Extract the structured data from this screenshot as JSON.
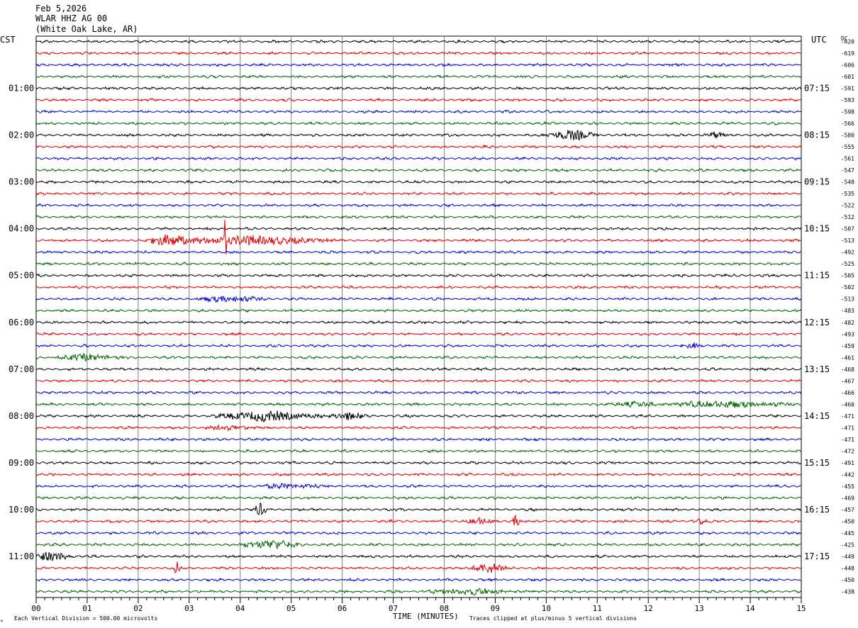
{
  "header": {
    "date": "Feb 5,2026",
    "station": "WLAR HHZ AG 00",
    "location": "(White Oak Lake, AR)"
  },
  "left_axis_label": "CST",
  "right_axis_label": "UTC",
  "dc_label": "DC",
  "footer": {
    "scale_note": "Each Vertical Division =  500.00 microvolts",
    "clip_note": "Traces clipped at plus/minus 5 vertical divisions",
    "corner_mark": "ᴹ"
  },
  "colors": {
    "trace_cycle": [
      "#000000",
      "#e00000",
      "#0000d0",
      "#006400"
    ],
    "grid": "#7f7f7f"
  },
  "chart_data": {
    "type": "line",
    "xlabel": "TIME (MINUTES)",
    "xlim": [
      0,
      15
    ],
    "x_ticks": [
      "00",
      "01",
      "02",
      "03",
      "04",
      "05",
      "06",
      "07",
      "08",
      "09",
      "10",
      "11",
      "12",
      "13",
      "14",
      "15"
    ],
    "left_hour_labels": [
      "01:00",
      "02:00",
      "03:00",
      "04:00",
      "05:00",
      "06:00",
      "07:00",
      "08:00",
      "09:00",
      "10:00",
      "11:00"
    ],
    "right_hour_labels": [
      "07:15",
      "08:15",
      "09:15",
      "10:15",
      "11:15",
      "12:15",
      "13:15",
      "14:15",
      "15:15",
      "16:15",
      "17:15"
    ],
    "rows_per_hour": 4,
    "dc_offsets": [
      -620,
      -619,
      -606,
      -601,
      -591,
      -593,
      -598,
      -566,
      -580,
      -555,
      -561,
      -547,
      -548,
      -535,
      -522,
      -512,
      -507,
      -513,
      -492,
      -525,
      -505,
      -502,
      -513,
      -483,
      -482,
      -493,
      -459,
      -461,
      -468,
      -467,
      -466,
      -460,
      -471,
      -471,
      -471,
      -472,
      -491,
      -442,
      -455,
      -469,
      -457,
      -450,
      -445,
      -425,
      -449,
      -448,
      -450,
      -438
    ],
    "events": [
      {
        "row": 8,
        "minute": 10.5,
        "width": 0.6,
        "amp": 7
      },
      {
        "row": 8,
        "minute": 13.3,
        "width": 0.25,
        "amp": 4
      },
      {
        "row": 17,
        "minute": 3.7,
        "width": 0.05,
        "amp": 30
      },
      {
        "row": 17,
        "minute": 2.6,
        "width": 0.5,
        "amp": 8
      },
      {
        "row": 17,
        "minute": 4.2,
        "width": 1.8,
        "amp": 6
      },
      {
        "row": 22,
        "minute": 3.8,
        "width": 0.8,
        "amp": 4
      },
      {
        "row": 27,
        "minute": 1.0,
        "width": 0.8,
        "amp": 4
      },
      {
        "row": 26,
        "minute": 12.9,
        "width": 0.2,
        "amp": 4
      },
      {
        "row": 31,
        "minute": 13.5,
        "width": 1.6,
        "amp": 4
      },
      {
        "row": 31,
        "minute": 11.7,
        "width": 0.6,
        "amp": 3
      },
      {
        "row": 32,
        "minute": 4.5,
        "width": 1.2,
        "amp": 7
      },
      {
        "row": 32,
        "minute": 6.1,
        "width": 0.4,
        "amp": 6
      },
      {
        "row": 33,
        "minute": 3.8,
        "width": 0.6,
        "amp": 3
      },
      {
        "row": 38,
        "minute": 5.0,
        "width": 0.8,
        "amp": 3
      },
      {
        "row": 40,
        "minute": 4.4,
        "width": 0.15,
        "amp": 9
      },
      {
        "row": 41,
        "minute": 8.7,
        "width": 0.4,
        "amp": 4
      },
      {
        "row": 41,
        "minute": 9.4,
        "width": 0.12,
        "amp": 8
      },
      {
        "row": 41,
        "minute": 13.0,
        "width": 0.2,
        "amp": 4
      },
      {
        "row": 43,
        "minute": 4.6,
        "width": 0.7,
        "amp": 6
      },
      {
        "row": 44,
        "minute": 0.3,
        "width": 0.5,
        "amp": 6
      },
      {
        "row": 45,
        "minute": 2.75,
        "width": 0.08,
        "amp": 12
      },
      {
        "row": 45,
        "minute": 8.9,
        "width": 0.5,
        "amp": 7
      },
      {
        "row": 47,
        "minute": 8.5,
        "width": 1.0,
        "amp": 4
      }
    ]
  }
}
